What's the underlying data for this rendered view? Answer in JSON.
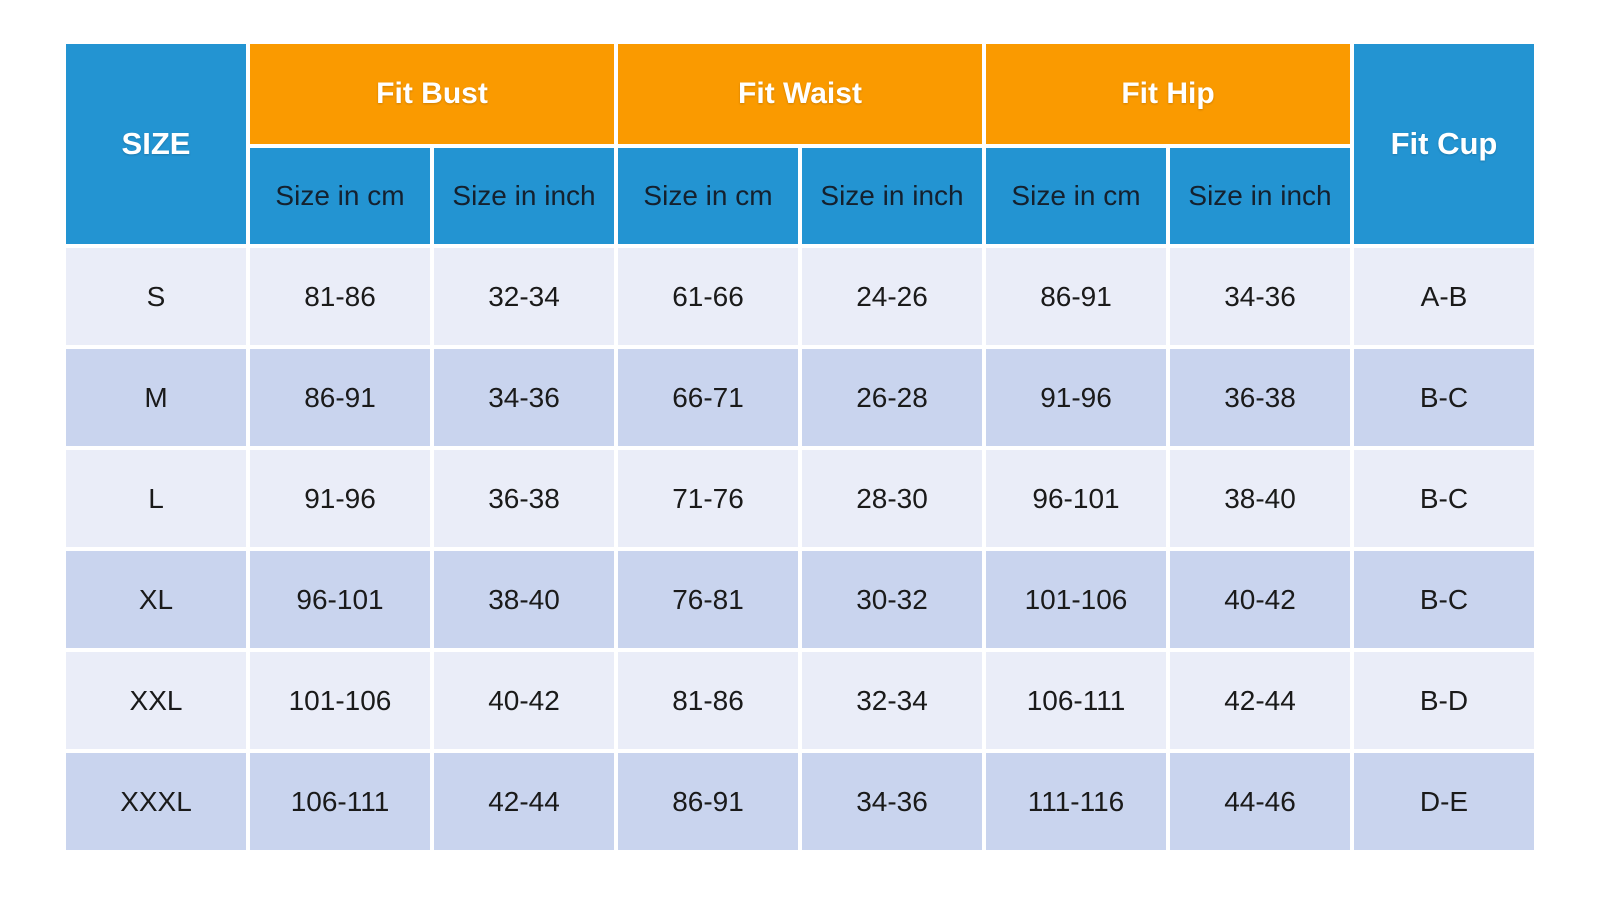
{
  "colors": {
    "blue": "#2394D2",
    "orange": "#FA9A00",
    "row_light": "#EAEDF8",
    "row_dark": "#C9D4EE",
    "gap": "#FFFFFF",
    "header_text": "#FFFFFF",
    "subheader_text": "#14212F",
    "data_text": "#1A1A1A"
  },
  "table": {
    "corner_header": "SIZE",
    "groups": [
      {
        "label": "Fit Bust"
      },
      {
        "label": "Fit Waist"
      },
      {
        "label": "Fit Hip"
      }
    ],
    "cup_header": "Fit Cup",
    "subheaders": [
      "Size in cm",
      "Size in inch",
      "Size in cm",
      "Size in inch",
      "Size in cm",
      "Size in inch"
    ],
    "rows": [
      {
        "cells": [
          "S",
          "81-86",
          "32-34",
          "61-66",
          "24-26",
          "86-91",
          "34-36",
          "A-B"
        ]
      },
      {
        "cells": [
          "M",
          "86-91",
          "34-36",
          "66-71",
          "26-28",
          "91-96",
          "36-38",
          "B-C"
        ]
      },
      {
        "cells": [
          "L",
          "91-96",
          "36-38",
          "71-76",
          "28-30",
          "96-101",
          "38-40",
          "B-C"
        ]
      },
      {
        "cells": [
          "XL",
          "96-101",
          "38-40",
          "76-81",
          "30-32",
          "101-106",
          "40-42",
          "B-C"
        ]
      },
      {
        "cells": [
          "XXL",
          "101-106",
          "40-42",
          "81-86",
          "32-34",
          "106-111",
          "42-44",
          "B-D"
        ]
      },
      {
        "cells": [
          "XXXL",
          "106-111",
          "42-44",
          "86-91",
          "34-36",
          "111-116",
          "44-46",
          "D-E"
        ]
      }
    ]
  },
  "chart_data": {
    "type": "table",
    "title": "",
    "columns": [
      "SIZE",
      "Fit Bust Size in cm",
      "Fit Bust Size in inch",
      "Fit Waist Size in cm",
      "Fit Waist Size in inch",
      "Fit Hip Size in cm",
      "Fit Hip Size in inch",
      "Fit Cup"
    ],
    "rows": [
      [
        "S",
        "81-86",
        "32-34",
        "61-66",
        "24-26",
        "86-91",
        "34-36",
        "A-B"
      ],
      [
        "M",
        "86-91",
        "34-36",
        "66-71",
        "26-28",
        "91-96",
        "36-38",
        "B-C"
      ],
      [
        "L",
        "91-96",
        "36-38",
        "71-76",
        "28-30",
        "96-101",
        "38-40",
        "B-C"
      ],
      [
        "XL",
        "96-101",
        "38-40",
        "76-81",
        "30-32",
        "101-106",
        "40-42",
        "B-C"
      ],
      [
        "XXL",
        "101-106",
        "40-42",
        "81-86",
        "32-34",
        "106-111",
        "42-44",
        "B-D"
      ],
      [
        "XXXL",
        "106-111",
        "42-44",
        "86-91",
        "34-36",
        "111-116",
        "44-46",
        "D-E"
      ]
    ],
    "layout": {
      "header_fill_group": "#FA9A00",
      "header_fill_side": "#2394D2",
      "body_fill_alternating": [
        "#EAEDF8",
        "#C9D4EE"
      ],
      "grid": "white 4px gaps between cells"
    }
  }
}
